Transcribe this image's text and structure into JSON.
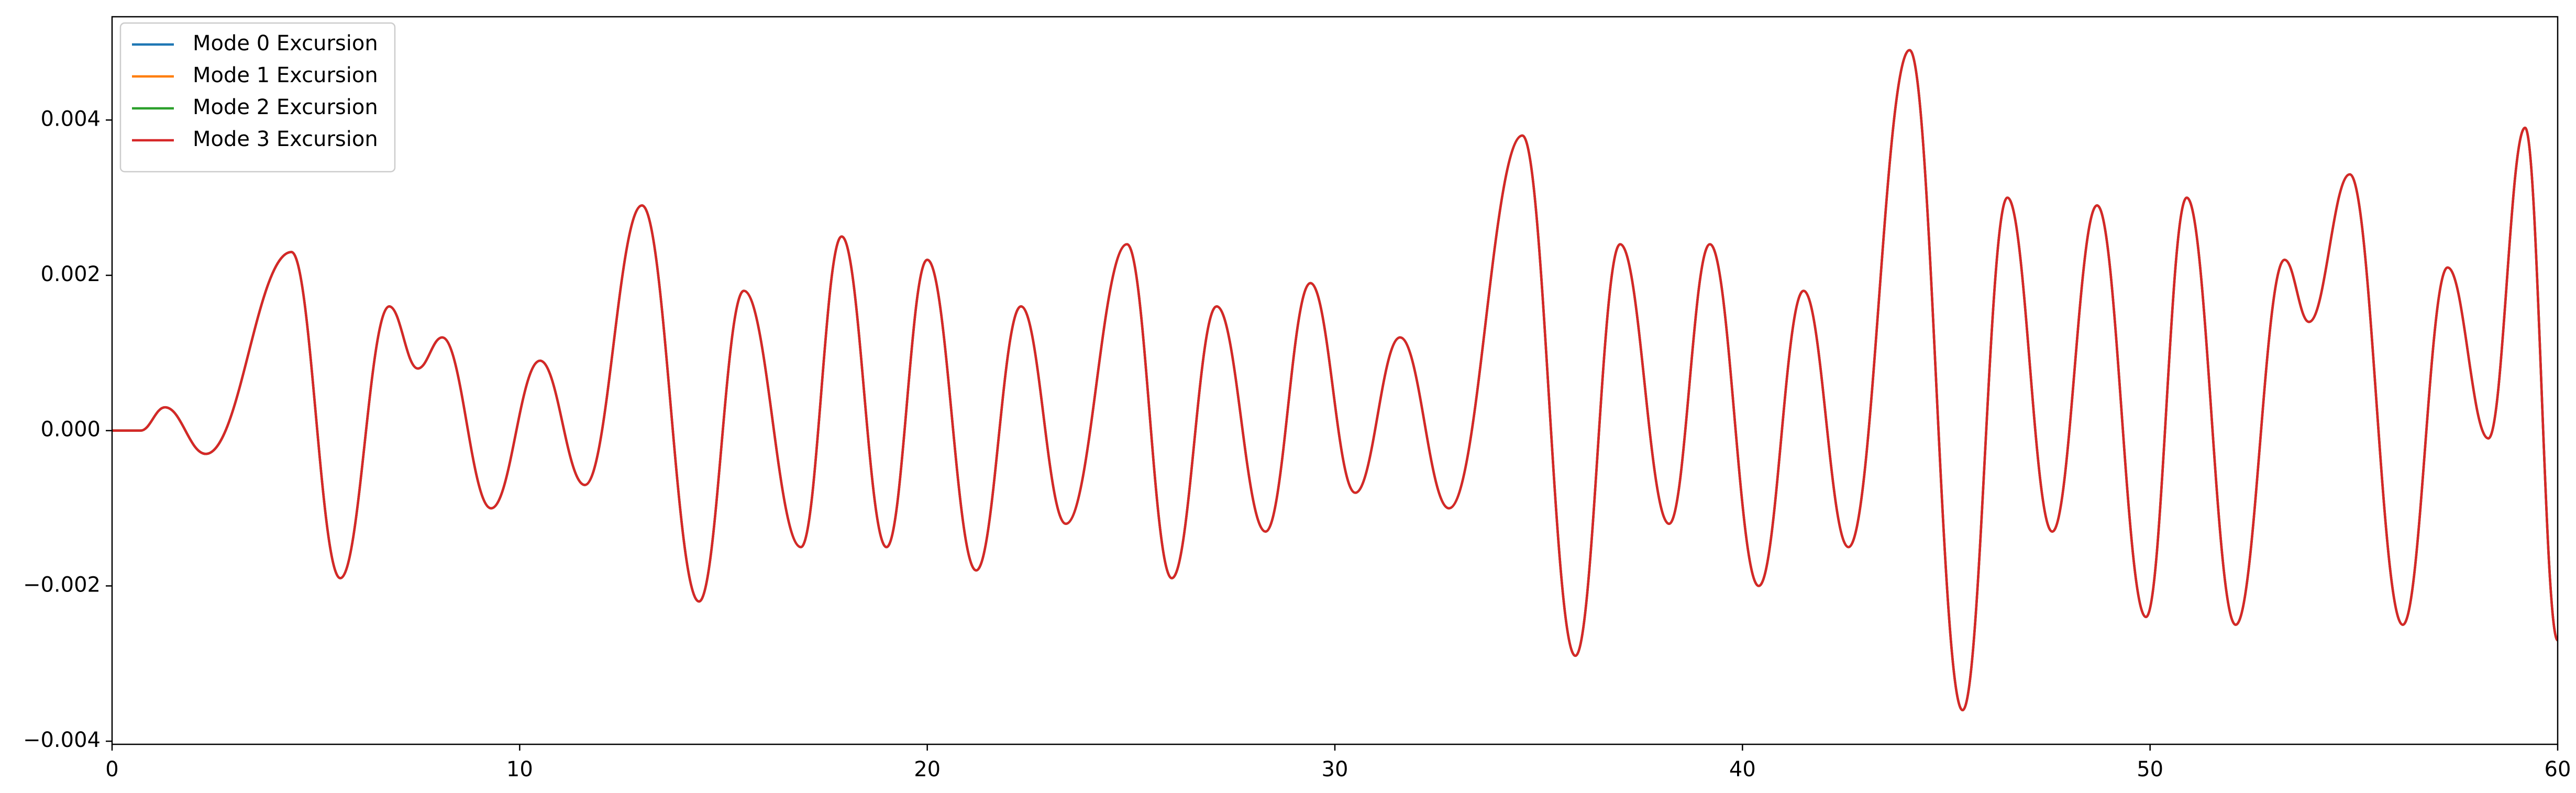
{
  "chart_data": {
    "type": "line",
    "x": [
      0,
      0.7,
      1.3,
      2.3,
      4.4,
      5.6,
      6.8,
      7.5,
      8.1,
      9.3,
      10.5,
      11.6,
      13.0,
      14.4,
      15.5,
      16.9,
      17.9,
      19.0,
      20.0,
      21.2,
      22.3,
      23.4,
      24.9,
      26.0,
      27.1,
      28.3,
      29.4,
      30.5,
      31.6,
      32.8,
      34.6,
      35.9,
      37.0,
      38.2,
      39.2,
      40.4,
      41.5,
      42.6,
      44.1,
      45.4,
      46.5,
      47.6,
      48.7,
      49.9,
      50.9,
      52.1,
      53.3,
      53.9,
      54.9,
      56.2,
      57.3,
      58.3,
      59.2,
      60
    ],
    "series": [
      {
        "name": "Mode 0 Excursion",
        "color": "#1f77b4",
        "values": [
          0,
          0,
          0.0003,
          -0.0003,
          0.0023,
          -0.0019,
          0.0016,
          0.0008,
          0.0012,
          -0.001,
          0.0009,
          -0.0007,
          0.0029,
          -0.0022,
          0.0018,
          -0.0015,
          0.0025,
          -0.0015,
          0.0022,
          -0.0018,
          0.0016,
          -0.0012,
          0.0024,
          -0.0019,
          0.0016,
          -0.0013,
          0.0019,
          -0.0008,
          0.0012,
          -0.001,
          0.0038,
          -0.0029,
          0.0024,
          -0.0012,
          0.0024,
          -0.002,
          0.0018,
          -0.0015,
          0.0049,
          -0.0036,
          0.003,
          -0.0013,
          0.0029,
          -0.0024,
          0.003,
          -0.0025,
          0.0022,
          0.0014,
          0.0033,
          -0.0025,
          0.0021,
          -0.0001,
          0.0039,
          -0.0027
        ]
      },
      {
        "name": "Mode 1 Excursion",
        "color": "#ff7f0e",
        "values": [
          0,
          0,
          0.0003,
          -0.0003,
          0.0023,
          -0.0019,
          0.0016,
          0.0008,
          0.0012,
          -0.001,
          0.0009,
          -0.0007,
          0.0029,
          -0.0022,
          0.0018,
          -0.0015,
          0.0025,
          -0.0015,
          0.0022,
          -0.0018,
          0.0016,
          -0.0012,
          0.0024,
          -0.0019,
          0.0016,
          -0.0013,
          0.0019,
          -0.0008,
          0.0012,
          -0.001,
          0.0038,
          -0.0029,
          0.0024,
          -0.0012,
          0.0024,
          -0.002,
          0.0018,
          -0.0015,
          0.0049,
          -0.0036,
          0.003,
          -0.0013,
          0.0029,
          -0.0024,
          0.003,
          -0.0025,
          0.0022,
          0.0014,
          0.0033,
          -0.0025,
          0.0021,
          -0.0001,
          0.0039,
          -0.0027
        ]
      },
      {
        "name": "Mode 2 Excursion",
        "color": "#2ca02c",
        "values": [
          0,
          0,
          0.0003,
          -0.0003,
          0.0023,
          -0.0019,
          0.0016,
          0.0008,
          0.0012,
          -0.001,
          0.0009,
          -0.0007,
          0.0029,
          -0.0022,
          0.0018,
          -0.0015,
          0.0025,
          -0.0015,
          0.0022,
          -0.0018,
          0.0016,
          -0.0012,
          0.0024,
          -0.0019,
          0.0016,
          -0.0013,
          0.0019,
          -0.0008,
          0.0012,
          -0.001,
          0.0038,
          -0.0029,
          0.0024,
          -0.0012,
          0.0024,
          -0.002,
          0.0018,
          -0.0015,
          0.0049,
          -0.0036,
          0.003,
          -0.0013,
          0.0029,
          -0.0024,
          0.003,
          -0.0025,
          0.0022,
          0.0014,
          0.0033,
          -0.0025,
          0.0021,
          -0.0001,
          0.0039,
          -0.0027
        ]
      },
      {
        "name": "Mode 3 Excursion",
        "color": "#d62728",
        "values": [
          0,
          0,
          0.0003,
          -0.0003,
          0.0023,
          -0.0019,
          0.0016,
          0.0008,
          0.0012,
          -0.001,
          0.0009,
          -0.0007,
          0.0029,
          -0.0022,
          0.0018,
          -0.0015,
          0.0025,
          -0.0015,
          0.0022,
          -0.0018,
          0.0016,
          -0.0012,
          0.0024,
          -0.0019,
          0.0016,
          -0.0013,
          0.0019,
          -0.0008,
          0.0012,
          -0.001,
          0.0038,
          -0.0029,
          0.0024,
          -0.0012,
          0.0024,
          -0.002,
          0.0018,
          -0.0015,
          0.0049,
          -0.0036,
          0.003,
          -0.0013,
          0.0029,
          -0.0024,
          0.003,
          -0.0025,
          0.0022,
          0.0014,
          0.0033,
          -0.0025,
          0.0021,
          -0.0001,
          0.0039,
          -0.0027
        ]
      }
    ],
    "xlim": [
      0,
      60
    ],
    "xticks": [
      0,
      10,
      20,
      30,
      40,
      50,
      60
    ],
    "ylim": [
      -0.00404,
      0.00533
    ],
    "yticks": [
      {
        "value": -0.004,
        "label": "−0.004"
      },
      {
        "value": -0.002,
        "label": "−0.002"
      },
      {
        "value": 0,
        "label": "0.000"
      },
      {
        "value": 0.002,
        "label": "0.002"
      },
      {
        "value": 0.004,
        "label": "0.004"
      }
    ],
    "legend": "upper left"
  }
}
